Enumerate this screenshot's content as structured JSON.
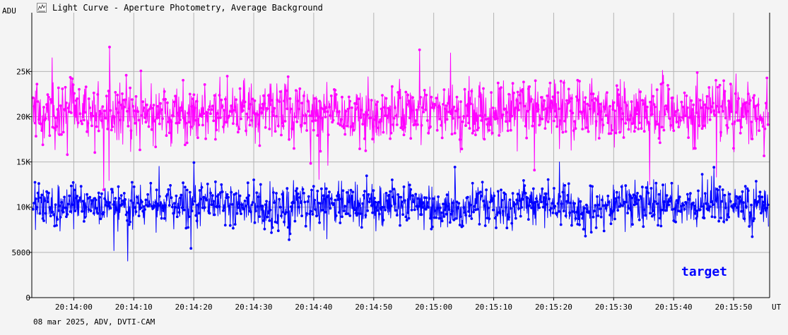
{
  "window": {
    "title": "Light Curve - Aperture Photometry, Average Background",
    "icon": "light-curve-icon"
  },
  "footer": {
    "text": "08 mar 2025, ADV, DVTI-CAM"
  },
  "chart_data": {
    "type": "line",
    "title": "Light Curve - Aperture Photometry, Average Background",
    "ylabel": "ADU",
    "xlabel": "UT",
    "ylim": [
      0,
      31500
    ],
    "xlim": [
      "20:13:53",
      "20:15:56"
    ],
    "y_ticks": [
      {
        "value": 0,
        "label": "0"
      },
      {
        "value": 5000,
        "label": "5000"
      },
      {
        "value": 10000,
        "label": "10K"
      },
      {
        "value": 15000,
        "label": "15K"
      },
      {
        "value": 20000,
        "label": "20K"
      },
      {
        "value": 25000,
        "label": "25K"
      }
    ],
    "x_ticks": [
      "20:14:00",
      "20:14:10",
      "20:14:20",
      "20:14:30",
      "20:14:40",
      "20:14:50",
      "20:15:00",
      "20:15:10",
      "20:15:20",
      "20:15:30",
      "20:15:40",
      "20:15:50"
    ],
    "grid": true,
    "point_count": 1500,
    "series": [
      {
        "name": "",
        "color": "#ff00ff",
        "mean": 20500,
        "spread": 2400,
        "max": 28800,
        "min": 11800
      },
      {
        "name": "target",
        "color": "#0000ff",
        "mean": 10200,
        "spread": 1700,
        "max": 15000,
        "min": 3500
      }
    ],
    "annotations": [
      {
        "text": "target",
        "color": "#0000ff"
      }
    ]
  }
}
